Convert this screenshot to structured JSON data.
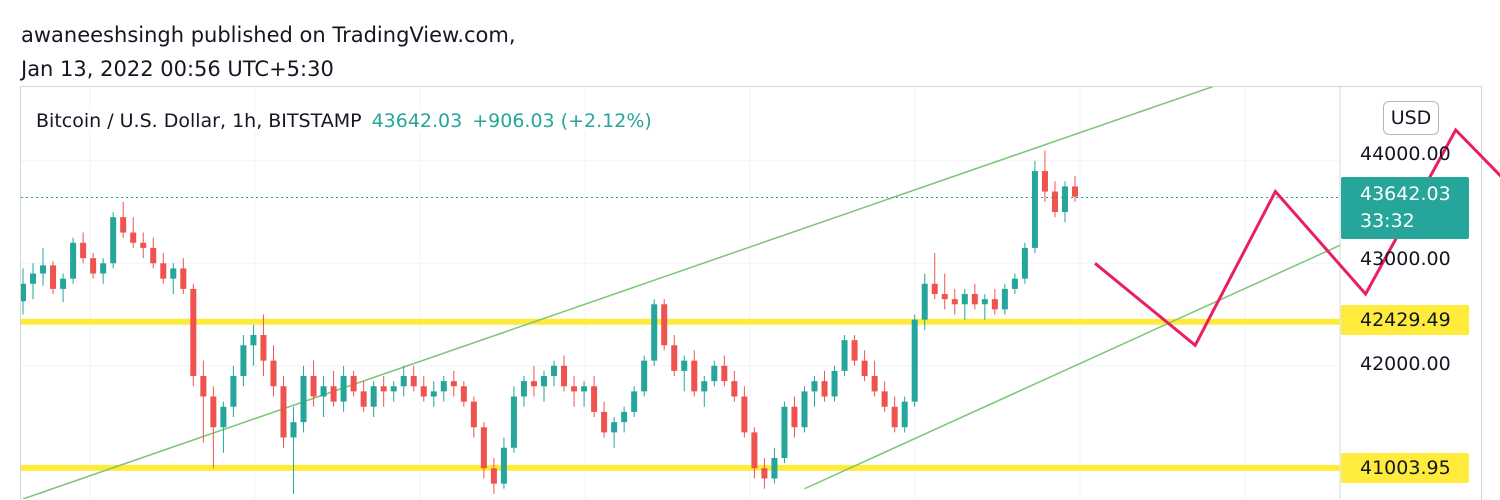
{
  "header": {
    "published_line": "awaneeshsingh published on TradingView.com,",
    "date_line": "Jan 13, 2022 00:56 UTC+5:30"
  },
  "legend": {
    "symbol": "Bitcoin / U.S. Dollar, 1h, BITSTAMP",
    "last_price": "43642.03",
    "change": "+906.03 (+2.12%)"
  },
  "currency": "USD",
  "price_axis": {
    "ticks": [
      "44000.00",
      "43000.00",
      "42000.00"
    ],
    "last_price_label": "43642.03",
    "countdown": "33:32",
    "levels": [
      "42429.49",
      "41003.95"
    ]
  },
  "colors": {
    "up": "#26a69a",
    "down": "#ef5350",
    "level_line": "#ffeb3b",
    "channel": "#7cc576",
    "forecast": "#e91e63",
    "grid": "#f0f3fa"
  },
  "chart_data": {
    "type": "candlestick",
    "y_range": [
      40700,
      44720
    ],
    "horizontal_levels": [
      42429.49,
      41003.95
    ],
    "last_price": 43642.03,
    "candles_ohlc": [
      [
        42630,
        42950,
        42500,
        42800
      ],
      [
        42800,
        43000,
        42650,
        42900
      ],
      [
        42900,
        43150,
        42780,
        42980
      ],
      [
        42980,
        43020,
        42700,
        42750
      ],
      [
        42750,
        42900,
        42620,
        42850
      ],
      [
        42850,
        43250,
        42800,
        43200
      ],
      [
        43200,
        43300,
        43000,
        43050
      ],
      [
        43050,
        43100,
        42850,
        42900
      ],
      [
        42900,
        43050,
        42800,
        43000
      ],
      [
        43000,
        43500,
        42950,
        43450
      ],
      [
        43450,
        43600,
        43250,
        43300
      ],
      [
        43300,
        43450,
        43150,
        43200
      ],
      [
        43200,
        43300,
        43050,
        43150
      ],
      [
        43150,
        43250,
        42950,
        43000
      ],
      [
        43000,
        43100,
        42800,
        42850
      ],
      [
        42850,
        43000,
        42700,
        42950
      ],
      [
        42950,
        43050,
        42700,
        42750
      ],
      [
        42750,
        42800,
        41800,
        41900
      ],
      [
        41900,
        42050,
        41250,
        41700
      ],
      [
        41700,
        41800,
        41000,
        41400
      ],
      [
        41400,
        41650,
        41150,
        41600
      ],
      [
        41600,
        42000,
        41500,
        41900
      ],
      [
        41900,
        42300,
        41800,
        42200
      ],
      [
        42200,
        42400,
        42000,
        42300
      ],
      [
        42300,
        42500,
        41900,
        42050
      ],
      [
        42050,
        42200,
        41700,
        41800
      ],
      [
        41800,
        41900,
        41200,
        41300
      ],
      [
        41300,
        41600,
        40750,
        41450
      ],
      [
        41450,
        42000,
        41350,
        41900
      ],
      [
        41900,
        42050,
        41600,
        41700
      ],
      [
        41700,
        41900,
        41500,
        41800
      ],
      [
        41800,
        41950,
        41600,
        41650
      ],
      [
        41650,
        42000,
        41550,
        41900
      ],
      [
        41900,
        41950,
        41700,
        41750
      ],
      [
        41750,
        41850,
        41550,
        41600
      ],
      [
        41600,
        41850,
        41500,
        41800
      ],
      [
        41800,
        41900,
        41600,
        41750
      ],
      [
        41750,
        41850,
        41650,
        41800
      ],
      [
        41800,
        42000,
        41700,
        41900
      ],
      [
        41900,
        42000,
        41750,
        41800
      ],
      [
        41800,
        41900,
        41650,
        41700
      ],
      [
        41700,
        41850,
        41600,
        41750
      ],
      [
        41750,
        41900,
        41650,
        41850
      ],
      [
        41850,
        41950,
        41700,
        41800
      ],
      [
        41800,
        41850,
        41600,
        41650
      ],
      [
        41650,
        41700,
        41300,
        41400
      ],
      [
        41400,
        41450,
        40900,
        41000
      ],
      [
        41000,
        41100,
        40750,
        40850
      ],
      [
        40850,
        41300,
        40800,
        41200
      ],
      [
        41200,
        41800,
        41150,
        41700
      ],
      [
        41700,
        41900,
        41600,
        41850
      ],
      [
        41850,
        42000,
        41700,
        41800
      ],
      [
        41800,
        41950,
        41650,
        41900
      ],
      [
        41900,
        42050,
        41800,
        42000
      ],
      [
        42000,
        42100,
        41750,
        41800
      ],
      [
        41800,
        41900,
        41600,
        41750
      ],
      [
        41750,
        41850,
        41600,
        41800
      ],
      [
        41800,
        41900,
        41500,
        41550
      ],
      [
        41550,
        41650,
        41300,
        41350
      ],
      [
        41350,
        41500,
        41200,
        41450
      ],
      [
        41450,
        41600,
        41350,
        41550
      ],
      [
        41550,
        41800,
        41500,
        41750
      ],
      [
        41750,
        42100,
        41700,
        42050
      ],
      [
        42050,
        42650,
        42000,
        42600
      ],
      [
        42600,
        42650,
        42150,
        42200
      ],
      [
        42200,
        42300,
        41900,
        41950
      ],
      [
        41950,
        42100,
        41750,
        42050
      ],
      [
        42050,
        42150,
        41700,
        41750
      ],
      [
        41750,
        41900,
        41600,
        41850
      ],
      [
        41850,
        42050,
        41800,
        42000
      ],
      [
        42000,
        42100,
        41800,
        41850
      ],
      [
        41850,
        41950,
        41650,
        41700
      ],
      [
        41700,
        41800,
        41300,
        41350
      ],
      [
        41350,
        41400,
        40900,
        41000
      ],
      [
        41000,
        41100,
        40800,
        40900
      ],
      [
        40900,
        41200,
        40850,
        41100
      ],
      [
        41100,
        41650,
        41050,
        41600
      ],
      [
        41600,
        41700,
        41300,
        41400
      ],
      [
        41400,
        41800,
        41350,
        41750
      ],
      [
        41750,
        41900,
        41600,
        41850
      ],
      [
        41850,
        41950,
        41650,
        41700
      ],
      [
        41700,
        42000,
        41650,
        41950
      ],
      [
        41950,
        42300,
        41900,
        42250
      ],
      [
        42250,
        42300,
        42000,
        42050
      ],
      [
        42050,
        42150,
        41850,
        41900
      ],
      [
        41900,
        42050,
        41700,
        41750
      ],
      [
        41750,
        41850,
        41550,
        41600
      ],
      [
        41600,
        41700,
        41350,
        41400
      ],
      [
        41400,
        41700,
        41350,
        41650
      ],
      [
        41650,
        42500,
        41600,
        42450
      ],
      [
        42450,
        42900,
        42350,
        42800
      ],
      [
        42800,
        43100,
        42650,
        42700
      ],
      [
        42700,
        42900,
        42550,
        42650
      ],
      [
        42650,
        42750,
        42500,
        42600
      ],
      [
        42600,
        42750,
        42450,
        42700
      ],
      [
        42700,
        42800,
        42550,
        42600
      ],
      [
        42600,
        42700,
        42450,
        42650
      ],
      [
        42650,
        42750,
        42500,
        42550
      ],
      [
        42550,
        42800,
        42500,
        42750
      ],
      [
        42750,
        42900,
        42700,
        42850
      ],
      [
        42850,
        43200,
        42800,
        43150
      ],
      [
        43150,
        44000,
        43100,
        43900
      ],
      [
        43900,
        44100,
        43600,
        43700
      ],
      [
        43700,
        43800,
        43450,
        43500
      ],
      [
        43500,
        43800,
        43400,
        43750
      ],
      [
        43750,
        43850,
        43600,
        43650
      ]
    ],
    "channel_lines": [
      {
        "from": [
          0,
          40700
        ],
        "to": [
          121,
          44800
        ]
      },
      {
        "from": [
          78,
          40800
        ],
        "to": [
          150,
          44000
        ]
      }
    ],
    "forecast_path": [
      [
        107,
        43000
      ],
      [
        117,
        42200
      ],
      [
        125,
        43700
      ],
      [
        134,
        42700
      ],
      [
        143,
        44300
      ],
      [
        152,
        43400
      ],
      [
        157,
        44450
      ]
    ]
  }
}
